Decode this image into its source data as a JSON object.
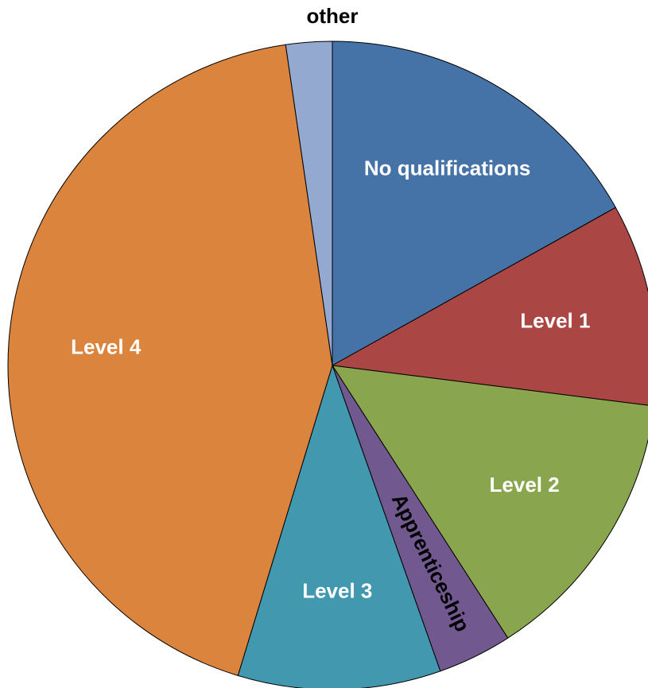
{
  "chart_data": {
    "type": "pie",
    "categories": [
      "No qualifications",
      "Level 1",
      "Level 2",
      "Apprenticeship",
      "Level 3",
      "Level 4",
      "other"
    ],
    "values": [
      16.9,
      10.1,
      13.9,
      3.7,
      10.1,
      43.0,
      2.3
    ],
    "colors": [
      "#4572a7",
      "#aa4643",
      "#89a54e",
      "#71588f",
      "#4198af",
      "#db843d",
      "#93a9cf"
    ]
  }
}
